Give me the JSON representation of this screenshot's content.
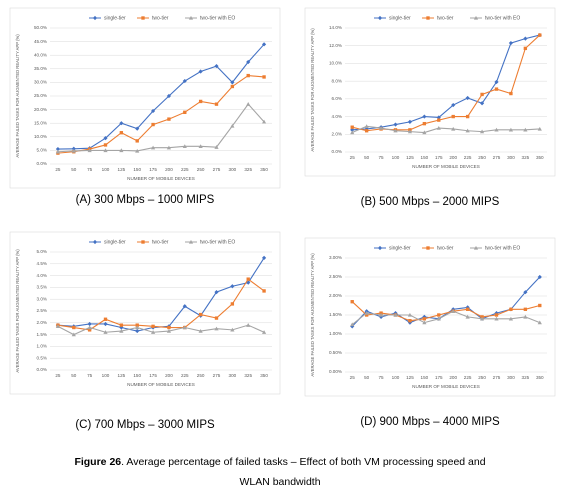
{
  "chart_data": [
    {
      "type": "line",
      "caption": "(A) 300 Mbps – 1000 MIPS",
      "xlabel": "NUMBER OF MOBILE DEVICES",
      "ylabel": "AVERAGE FAILED TASKS FOR AUGMENTED REALITY APP (%)",
      "categories": [
        "25",
        "50",
        "75",
        "100",
        "125",
        "150",
        "175",
        "200",
        "225",
        "250",
        "275",
        "300",
        "325",
        "350"
      ],
      "ylim": [
        0,
        50
      ],
      "yticks": [
        {
          "value": 0,
          "label": "0.0%"
        },
        {
          "value": 5,
          "label": "5.0%"
        },
        {
          "value": 10,
          "label": "10.0%"
        },
        {
          "value": 15,
          "label": "15.0%"
        },
        {
          "value": 20,
          "label": "20.0%"
        },
        {
          "value": 25,
          "label": "25.0%"
        },
        {
          "value": 30,
          "label": "30.0%"
        },
        {
          "value": 35,
          "label": "35.0%"
        },
        {
          "value": 40,
          "label": "40.0%"
        },
        {
          "value": 45,
          "label": "45.0%"
        },
        {
          "value": 50,
          "label": "50.0%"
        }
      ],
      "grid": true,
      "series": [
        {
          "name": "single-tier",
          "color": "#4472c4",
          "marker": "diamond",
          "values": [
            5.5,
            5.6,
            5.8,
            9.5,
            15,
            13,
            19.5,
            25,
            30.5,
            34,
            36,
            30,
            37.5,
            44
          ]
        },
        {
          "name": "two-tier",
          "color": "#ed7d31",
          "marker": "square",
          "values": [
            4,
            4.5,
            5.5,
            7,
            11.5,
            8.5,
            14.5,
            16.5,
            19,
            23,
            22,
            28.5,
            32.5,
            32
          ]
        },
        {
          "name": "two-tier with EO",
          "color": "#a5a5a5",
          "marker": "triangle",
          "values": [
            4.5,
            4.8,
            5,
            5,
            5,
            4.8,
            6,
            6,
            6.5,
            6.5,
            6.2,
            14,
            22,
            15.5
          ]
        }
      ]
    },
    {
      "type": "line",
      "caption": "(B) 500 Mbps – 2000 MIPS",
      "xlabel": "NUMBER OF MOBILE DEVICES",
      "ylabel": "AVERAGE FAILED TASKS FOR AUGMENTED REALITY APP (%)",
      "categories": [
        "25",
        "50",
        "75",
        "100",
        "125",
        "150",
        "175",
        "200",
        "225",
        "250",
        "275",
        "300",
        "325",
        "350"
      ],
      "ylim": [
        0,
        14
      ],
      "yticks": [
        {
          "value": 0,
          "label": "0.0%"
        },
        {
          "value": 2,
          "label": "2.0%"
        },
        {
          "value": 4,
          "label": "4.0%"
        },
        {
          "value": 6,
          "label": "6.0%"
        },
        {
          "value": 8,
          "label": "8.0%"
        },
        {
          "value": 10,
          "label": "10.0%"
        },
        {
          "value": 12,
          "label": "12.0%"
        },
        {
          "value": 14,
          "label": "14.0%"
        }
      ],
      "grid": true,
      "series": [
        {
          "name": "single-tier",
          "color": "#4472c4",
          "marker": "diamond",
          "values": [
            2.5,
            2.6,
            2.8,
            3.1,
            3.4,
            4,
            3.9,
            5.3,
            6.1,
            5.5,
            7.9,
            12.3,
            12.8,
            13.2
          ]
        },
        {
          "name": "two-tier",
          "color": "#ed7d31",
          "marker": "square",
          "values": [
            2.8,
            2.4,
            2.6,
            2.5,
            2.5,
            3.2,
            3.6,
            4,
            4,
            6.5,
            7.1,
            6.6,
            11.7,
            13.2
          ]
        },
        {
          "name": "two-tier with EO",
          "color": "#a5a5a5",
          "marker": "triangle",
          "values": [
            2.2,
            2.9,
            2.7,
            2.4,
            2.3,
            2.2,
            2.7,
            2.6,
            2.4,
            2.3,
            2.5,
            2.5,
            2.5,
            2.6
          ]
        }
      ]
    },
    {
      "type": "line",
      "caption": "(C) 700 Mbps – 3000 MIPS",
      "xlabel": "NUMBER OF MOBILE DEVICES",
      "ylabel": "AVERAGE FAILED TASKS FOR AUGMENTED REALITY APP (%)",
      "categories": [
        "25",
        "50",
        "75",
        "100",
        "125",
        "150",
        "175",
        "200",
        "225",
        "250",
        "275",
        "300",
        "325",
        "350"
      ],
      "ylim": [
        0,
        5
      ],
      "yticks": [
        {
          "value": 0,
          "label": "0.0%"
        },
        {
          "value": 0.5,
          "label": "0.5%"
        },
        {
          "value": 1,
          "label": "1.0%"
        },
        {
          "value": 1.5,
          "label": "1.5%"
        },
        {
          "value": 2,
          "label": "2.0%"
        },
        {
          "value": 2.5,
          "label": "2.5%"
        },
        {
          "value": 3,
          "label": "3.0%"
        },
        {
          "value": 3.5,
          "label": "3.5%"
        },
        {
          "value": 4,
          "label": "4.0%"
        },
        {
          "value": 4.5,
          "label": "4.5%"
        },
        {
          "value": 5,
          "label": "5.0%"
        }
      ],
      "grid": true,
      "series": [
        {
          "name": "single-tier",
          "color": "#4472c4",
          "marker": "diamond",
          "values": [
            1.9,
            1.85,
            1.95,
            1.95,
            1.8,
            1.65,
            1.8,
            1.85,
            2.7,
            2.3,
            3.3,
            3.55,
            3.7,
            4.75
          ]
        },
        {
          "name": "two-tier",
          "color": "#ed7d31",
          "marker": "square",
          "values": [
            1.9,
            1.8,
            1.7,
            2.15,
            1.9,
            1.9,
            1.85,
            1.8,
            1.8,
            2.35,
            2.2,
            2.8,
            3.85,
            3.35
          ]
        },
        {
          "name": "two-tier with EO",
          "color": "#a5a5a5",
          "marker": "triangle",
          "values": [
            1.85,
            1.5,
            1.8,
            1.6,
            1.65,
            1.8,
            1.6,
            1.65,
            1.8,
            1.65,
            1.75,
            1.7,
            1.9,
            1.6
          ]
        }
      ]
    },
    {
      "type": "line",
      "caption": "(D) 900 Mbps – 4000 MIPS",
      "xlabel": "NUMBER OF MOBILE DEVICES",
      "ylabel": "AVERAGE FAILED TASKS FOR AUGMENTED REALITY APP (%)",
      "categories": [
        "25",
        "50",
        "75",
        "100",
        "125",
        "150",
        "175",
        "200",
        "225",
        "250",
        "275",
        "300",
        "325",
        "350"
      ],
      "ylim": [
        0,
        3
      ],
      "yticks": [
        {
          "value": 0,
          "label": "0.00%"
        },
        {
          "value": 0.5,
          "label": "0.50%"
        },
        {
          "value": 1,
          "label": "1.00%"
        },
        {
          "value": 1.5,
          "label": "1.50%"
        },
        {
          "value": 2,
          "label": "2.00%"
        },
        {
          "value": 2.5,
          "label": "2.50%"
        },
        {
          "value": 3,
          "label": "3.00%"
        }
      ],
      "grid": true,
      "series": [
        {
          "name": "single-tier",
          "color": "#4472c4",
          "marker": "diamond",
          "values": [
            1.2,
            1.6,
            1.45,
            1.55,
            1.3,
            1.45,
            1.4,
            1.65,
            1.7,
            1.4,
            1.55,
            1.65,
            2.1,
            2.5
          ]
        },
        {
          "name": "two-tier",
          "color": "#ed7d31",
          "marker": "square",
          "values": [
            1.85,
            1.5,
            1.55,
            1.5,
            1.35,
            1.4,
            1.5,
            1.6,
            1.65,
            1.45,
            1.5,
            1.65,
            1.65,
            1.75
          ]
        },
        {
          "name": "two-tier with EO",
          "color": "#a5a5a5",
          "marker": "triangle",
          "values": [
            1.25,
            1.55,
            1.5,
            1.5,
            1.5,
            1.3,
            1.4,
            1.6,
            1.45,
            1.4,
            1.4,
            1.4,
            1.45,
            1.3
          ]
        }
      ]
    }
  ],
  "figure_caption": {
    "label": "Figure 26",
    "lines": [
      ". Average percentage of failed tasks – Effect of both VM processing speed and",
      "WLAN bandwidth"
    ]
  }
}
